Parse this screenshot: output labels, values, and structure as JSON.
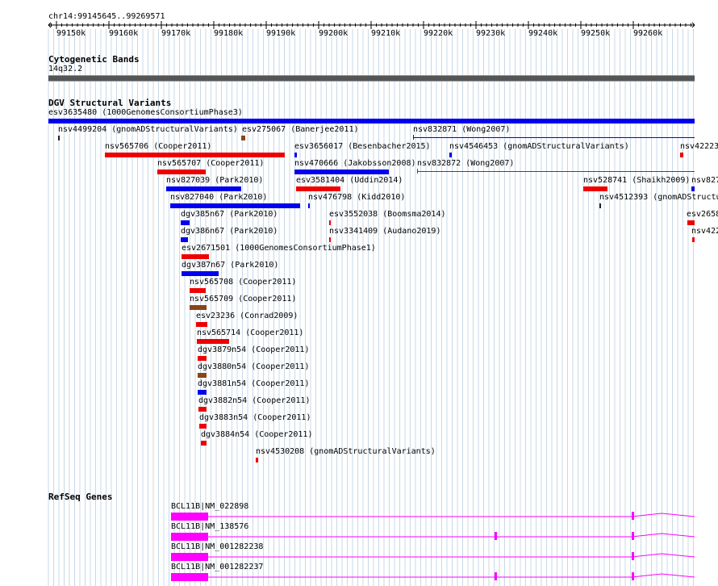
{
  "location": "chr14:99145645..99269571",
  "ruler_ticks": [
    "99150k",
    "99160k",
    "99170k",
    "99180k",
    "99190k",
    "99200k",
    "99210k",
    "99220k",
    "99230k",
    "99240k",
    "99250k",
    "99260k"
  ],
  "tracks": {
    "cytoband": {
      "title": "Cytogenetic Bands",
      "band_label": "14q32.2"
    },
    "dgv": {
      "title": "DGV Structural Variants",
      "features": [
        {
          "id": "f0",
          "label": "esv3635480 (1000GenomesConsortiumPhase3)",
          "color": "#0000ee"
        },
        {
          "id": "f1",
          "label": "nsv4499204 (gnomADStructuralVariants)",
          "color": "#222222"
        },
        {
          "id": "f2",
          "label": "esv275067 (Banerjee2011)",
          "color": "#8b4513"
        },
        {
          "id": "f3",
          "label": "nsv832871 (Wong2007)",
          "color": "#0000ee"
        },
        {
          "id": "f4",
          "label": "nsv565706 (Cooper2011)",
          "color": "#ee0000"
        },
        {
          "id": "f5",
          "label": "esv3656017 (Besenbacher2015)",
          "color": "#0000ee"
        },
        {
          "id": "f6",
          "label": "nsv4546453 (gnomADStructuralVariants)",
          "color": "#0000ee"
        },
        {
          "id": "f7",
          "label": "nsv42223",
          "color": "#ee0000"
        },
        {
          "id": "f8",
          "label": "nsv565707 (Cooper2011)",
          "color": "#ee0000"
        },
        {
          "id": "f9",
          "label": "nsv470666 (Jakobsson2008)",
          "color": "#0000ee"
        },
        {
          "id": "f10",
          "label": "nsv832872 (Wong2007)",
          "color": "#ee0000"
        },
        {
          "id": "f11",
          "label": "nsv827039 (Park2010)",
          "color": "#0000ee"
        },
        {
          "id": "f12",
          "label": "esv3581404 (Uddin2014)",
          "color": "#ee0000"
        },
        {
          "id": "f13",
          "label": "nsv528741 (Shaikh2009)",
          "color": "#ee0000"
        },
        {
          "id": "f14",
          "label": "nsv827",
          "color": "#0000ee"
        },
        {
          "id": "f15",
          "label": "nsv827040 (Park2010)",
          "color": "#0000ee"
        },
        {
          "id": "f16",
          "label": "nsv476798 (Kidd2010)",
          "color": "#0000ee"
        },
        {
          "id": "f17",
          "label": "nsv4512393 (gnomADStructu",
          "color": "#222222"
        },
        {
          "id": "f18",
          "label": "dgv385n67 (Park2010)",
          "color": "#0000ee"
        },
        {
          "id": "f19",
          "label": "esv3552038 (Boomsma2014)",
          "color": "#ee0000"
        },
        {
          "id": "f20",
          "label": "esv2658",
          "color": "#ee0000"
        },
        {
          "id": "f21",
          "label": "dgv386n67 (Park2010)",
          "color": "#0000ee"
        },
        {
          "id": "f22",
          "label": "nsv3341409 (Audano2019)",
          "color": "#ee0000"
        },
        {
          "id": "f23",
          "label": "nsv422",
          "color": "#ee0000"
        },
        {
          "id": "f24",
          "label": "esv2671501 (1000GenomesConsortiumPhase1)",
          "color": "#ee0000"
        },
        {
          "id": "f25",
          "label": "dgv387n67 (Park2010)",
          "color": "#0000ee"
        },
        {
          "id": "f26",
          "label": "nsv565708 (Cooper2011)",
          "color": "#ee0000"
        },
        {
          "id": "f27",
          "label": "nsv565709 (Cooper2011)",
          "color": "#8b4513"
        },
        {
          "id": "f28",
          "label": "esv23236 (Conrad2009)",
          "color": "#ee0000"
        },
        {
          "id": "f29",
          "label": "nsv565714 (Cooper2011)",
          "color": "#ee0000"
        },
        {
          "id": "f30",
          "label": "dgv3879n54 (Cooper2011)",
          "color": "#ee0000"
        },
        {
          "id": "f31",
          "label": "dgv3880n54 (Cooper2011)",
          "color": "#8b4513"
        },
        {
          "id": "f32",
          "label": "dgv3881n54 (Cooper2011)",
          "color": "#0000ee"
        },
        {
          "id": "f33",
          "label": "dgv3882n54 (Cooper2011)",
          "color": "#ee0000"
        },
        {
          "id": "f34",
          "label": "dgv3883n54 (Cooper2011)",
          "color": "#ee0000"
        },
        {
          "id": "f35",
          "label": "dgv3884n54 (Cooper2011)",
          "color": "#ee0000"
        },
        {
          "id": "f36",
          "label": "nsv4530208 (gnomADStructuralVariants)",
          "color": "#ee0000"
        }
      ]
    },
    "refseq": {
      "title": "RefSeq Genes",
      "color": "#ff00ff",
      "genes": [
        {
          "label": "BCL11B|NM_022898"
        },
        {
          "label": "BCL11B|NM_138576"
        },
        {
          "label": "BCL11B|NM_001282238"
        },
        {
          "label": "BCL11B|NM_001282237"
        }
      ]
    }
  }
}
